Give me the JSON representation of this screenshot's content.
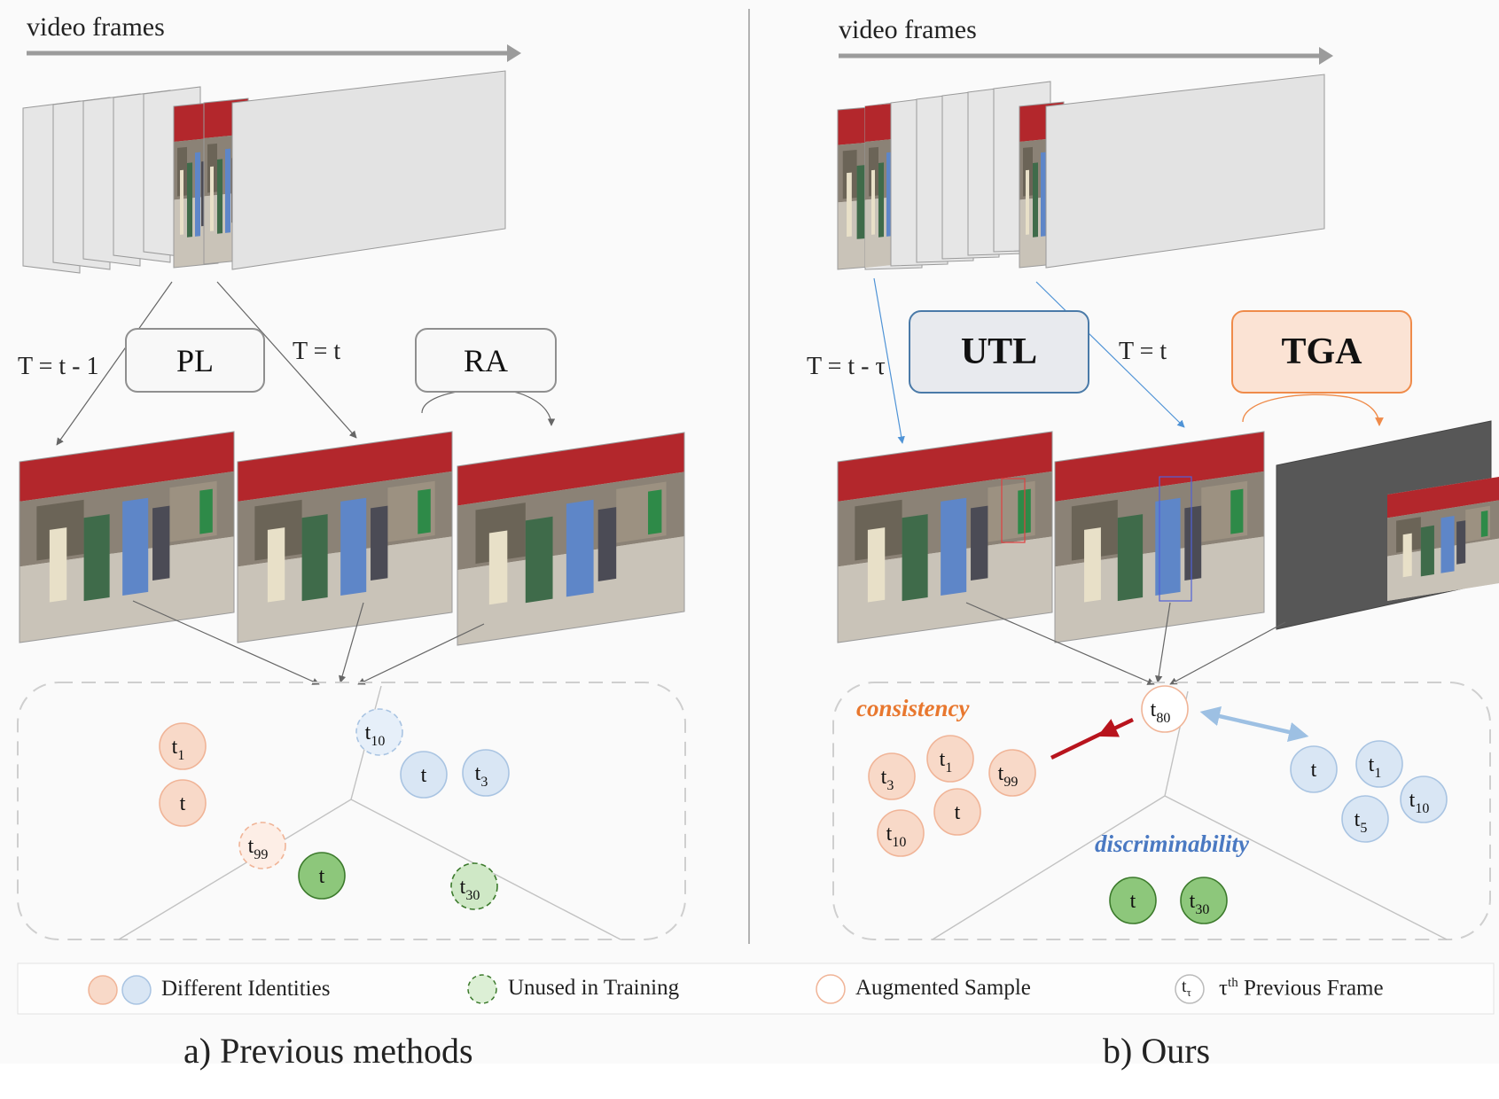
{
  "left": {
    "frames_label": "video frames",
    "pl_label": "PL",
    "ra_label": "RA",
    "t_prev_label": "T = t - 1",
    "t_cur_label": "T = t",
    "caption": "a) Previous methods",
    "nodes": [
      {
        "base": "t",
        "sub": "1",
        "kind": "orange"
      },
      {
        "base": "t",
        "sub": "",
        "kind": "orange"
      },
      {
        "base": "t",
        "sub": "10",
        "kind": "blue-dashed"
      },
      {
        "base": "t",
        "sub": "",
        "kind": "blue"
      },
      {
        "base": "t",
        "sub": "3",
        "kind": "blue"
      },
      {
        "base": "t",
        "sub": "99",
        "kind": "orange-dashed"
      },
      {
        "base": "t",
        "sub": "",
        "kind": "green"
      },
      {
        "base": "t",
        "sub": "30",
        "kind": "green-dashed"
      }
    ]
  },
  "right": {
    "frames_label": "video frames",
    "utl_label": "UTL",
    "tga_label": "TGA",
    "t_prev_label": "T = t - τ",
    "t_cur_label": "T = t",
    "consistency_label": "consistency",
    "discriminability_label": "discriminability",
    "caption": "b) Ours",
    "nodes": [
      {
        "base": "t",
        "sub": "80",
        "kind": "augmented"
      },
      {
        "base": "t",
        "sub": "3",
        "kind": "orange"
      },
      {
        "base": "t",
        "sub": "1",
        "kind": "orange"
      },
      {
        "base": "t",
        "sub": "99",
        "kind": "orange"
      },
      {
        "base": "t",
        "sub": "",
        "kind": "orange"
      },
      {
        "base": "t",
        "sub": "10",
        "kind": "orange"
      },
      {
        "base": "t",
        "sub": "",
        "kind": "blue"
      },
      {
        "base": "t",
        "sub": "1",
        "kind": "blue"
      },
      {
        "base": "t",
        "sub": "10",
        "kind": "blue"
      },
      {
        "base": "t",
        "sub": "5",
        "kind": "blue"
      },
      {
        "base": "t",
        "sub": "",
        "kind": "green"
      },
      {
        "base": "t",
        "sub": "30",
        "kind": "green"
      }
    ]
  },
  "legend": {
    "identities": "Different Identities",
    "unused": "Unused in Training",
    "augmented": "Augmented Sample",
    "prev_icon_base": "t",
    "prev_icon_sub": "τ",
    "prev_frame_sup": "th",
    "prev_frame_pre": "τ",
    "prev_frame_post": " Previous Frame"
  },
  "colors": {
    "orange_fill": "#f8d9c8",
    "orange_stroke": "#f0b497",
    "blue_fill": "#d9e6f4",
    "blue_stroke": "#a9c4e2",
    "green_fill": "#8dc77b",
    "green_stroke": "#3c7a2c",
    "utl_fill": "#e8eaee",
    "utl_stroke": "#4a7aa8",
    "tga_fill": "#fbe3d4",
    "tga_stroke": "#ef8b4a",
    "consistency": "#e8772e",
    "discriminability": "#4a79c2",
    "red_arrow": "#b8141d",
    "blue_arrow": "#9dc0e3"
  }
}
